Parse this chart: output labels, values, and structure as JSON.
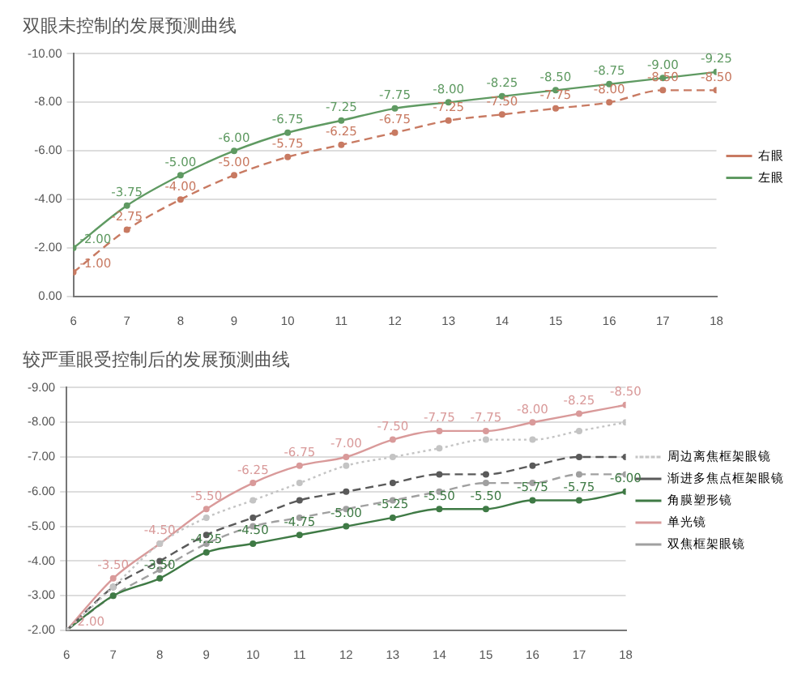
{
  "chart_data": [
    {
      "type": "line",
      "title": "双眼未控制的发展预测曲线",
      "x": [
        6,
        7,
        8,
        9,
        10,
        11,
        12,
        13,
        14,
        15,
        16,
        17,
        18
      ],
      "xlim": [
        6,
        18
      ],
      "xticks": [
        6,
        7,
        8,
        9,
        10,
        11,
        12,
        13,
        14,
        15,
        16,
        17,
        18
      ],
      "ylim": [
        0,
        -10
      ],
      "yticks": [
        {
          "value": 0,
          "label": "0.00"
        },
        {
          "value": -2,
          "label": "-2.00"
        },
        {
          "value": -4,
          "label": "-4.00"
        },
        {
          "value": -6,
          "label": "-6.00"
        },
        {
          "value": -8,
          "label": "-8.00"
        },
        {
          "value": -10,
          "label": "-10.00"
        }
      ],
      "grid": "y",
      "legend": "right",
      "marker": "circle",
      "series": [
        {
          "name": "右眼",
          "color": "#c87a62",
          "line_style": "dashed",
          "values": [
            -1.0,
            -2.75,
            -4.0,
            -5.0,
            -5.75,
            -6.25,
            -6.75,
            -7.25,
            -7.5,
            -7.75,
            -8.0,
            -8.5,
            -8.5
          ],
          "value_labels": [
            "-1.00",
            "-2.75",
            "-4.00",
            "-5.00",
            "-5.75",
            "-6.25",
            "-6.75",
            "-7.25",
            "-7.50",
            "-7.75",
            "-8.00",
            "-8.50",
            "-8.50"
          ]
        },
        {
          "name": "左眼",
          "color": "#5f9a62",
          "line_style": "solid",
          "values": [
            -2.0,
            -3.75,
            -5.0,
            -6.0,
            -6.75,
            -7.25,
            -7.75,
            -8.0,
            -8.25,
            -8.5,
            -8.75,
            -9.0,
            -9.25
          ],
          "value_labels": [
            "-2.00",
            "-3.75",
            "-5.00",
            "-6.00",
            "-6.75",
            "-7.25",
            "-7.75",
            "-8.00",
            "-8.25",
            "-8.50",
            "-8.75",
            "-9.00",
            "-9.25"
          ]
        }
      ]
    },
    {
      "type": "line",
      "title": "较严重眼受控制后的发展预测曲线",
      "x": [
        6,
        7,
        8,
        9,
        10,
        11,
        12,
        13,
        14,
        15,
        16,
        17,
        18
      ],
      "xlim": [
        6,
        18
      ],
      "xticks": [
        6,
        7,
        8,
        9,
        10,
        11,
        12,
        13,
        14,
        15,
        16,
        17,
        18
      ],
      "ylim": [
        -2,
        -9
      ],
      "yticks": [
        {
          "value": -2,
          "label": "-2.00"
        },
        {
          "value": -3,
          "label": "-3.00"
        },
        {
          "value": -4,
          "label": "-4.00"
        },
        {
          "value": -5,
          "label": "-5.00"
        },
        {
          "value": -6,
          "label": "-6.00"
        },
        {
          "value": -7,
          "label": "-7.00"
        },
        {
          "value": -8,
          "label": "-8.00"
        },
        {
          "value": -9,
          "label": "-9.00"
        }
      ],
      "grid": "y",
      "legend": "right",
      "marker": "circle",
      "series": [
        {
          "name": "周边离焦框架眼镜",
          "color": "#c4c4c4",
          "line_style": "dotted",
          "values": [
            -2.0,
            -3.25,
            -4.5,
            -5.25,
            -5.75,
            -6.25,
            -6.75,
            -7.0,
            -7.25,
            -7.5,
            -7.5,
            -7.75,
            -8.0
          ]
        },
        {
          "name": "渐进多焦点框架眼镜",
          "color": "#5a5a5a",
          "line_style": "dashed",
          "values": [
            -2.0,
            -3.25,
            -4.0,
            -4.75,
            -5.25,
            -5.75,
            -6.0,
            -6.25,
            -6.5,
            -6.5,
            -6.75,
            -7.0,
            -7.0
          ]
        },
        {
          "name": "角膜塑形镜",
          "color": "#3f7a45",
          "line_style": "solid",
          "values": [
            -2.0,
            -3.0,
            -3.5,
            -4.25,
            -4.5,
            -4.75,
            -5.0,
            -5.25,
            -5.5,
            -5.5,
            -5.75,
            -5.75,
            -6.0
          ],
          "value_labels": [
            null,
            null,
            "-3.50",
            "-4.25",
            "-4.50",
            "-4.75",
            "-5.00",
            "-5.25",
            "-5.50",
            "-5.50",
            "-5.75",
            "-5.75",
            "-6.00"
          ]
        },
        {
          "name": "单光镜",
          "color": "#d99a9a",
          "line_style": "solid",
          "values": [
            -2.0,
            -3.5,
            -4.5,
            -5.5,
            -6.25,
            -6.75,
            -7.0,
            -7.5,
            -7.75,
            -7.75,
            -8.0,
            -8.25,
            -8.5
          ],
          "value_labels": [
            "-2.00",
            "-3.50",
            "-4.50",
            "-5.50",
            "-6.25",
            "-6.75",
            "-7.00",
            "-7.50",
            "-7.75",
            "-7.75",
            "-8.00",
            "-8.25",
            "-8.50"
          ]
        },
        {
          "name": "双焦框架眼镜",
          "color": "#a0a0a0",
          "line_style": "dashed",
          "values": [
            -2.0,
            -3.0,
            -3.75,
            -4.5,
            -5.0,
            -5.25,
            -5.5,
            -5.75,
            -6.0,
            -6.25,
            -6.25,
            -6.5,
            -6.5
          ]
        }
      ]
    }
  ]
}
